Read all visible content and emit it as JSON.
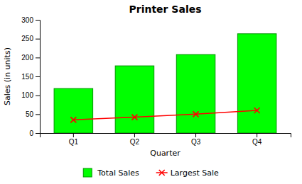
{
  "chart_data": {
    "type": "bar",
    "title": "Printer Sales",
    "xlabel": "Quarter",
    "ylabel": "Sales (in units)",
    "categories": [
      "Q1",
      "Q2",
      "Q3",
      "Q4"
    ],
    "series": [
      {
        "name": "Total Sales",
        "type": "bar",
        "color": "#00FF00",
        "values": [
          118,
          178,
          208,
          263
        ]
      },
      {
        "name": "Largest Sale",
        "type": "line",
        "color": "#FF0000",
        "marker": "x",
        "values": [
          35,
          42,
          50,
          60
        ]
      }
    ],
    "ylim": [
      0,
      300
    ],
    "yticks": [
      0,
      50,
      100,
      150,
      200,
      250,
      300
    ],
    "grid": false,
    "legend": "bottom"
  }
}
